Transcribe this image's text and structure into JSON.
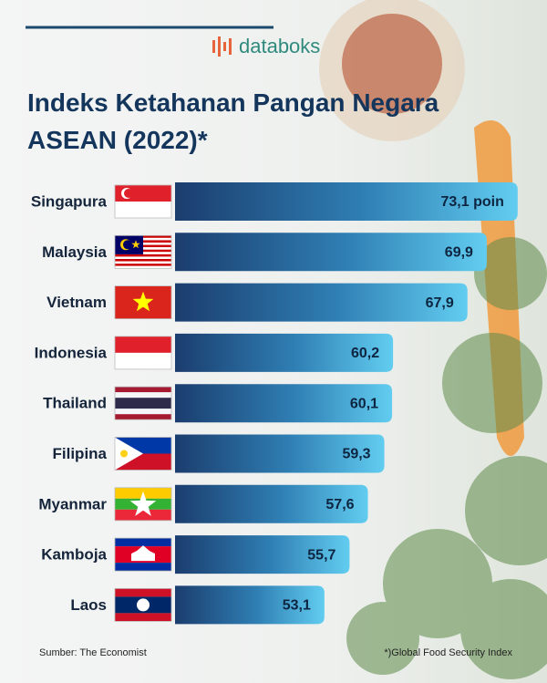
{
  "brand": "databoks",
  "chart_data": {
    "type": "bar",
    "orientation": "horizontal",
    "title": "Indeks Ketahanan Pangan Negara ASEAN (2022)*",
    "categories": [
      "Singapura",
      "Malaysia",
      "Vietnam",
      "Indonesia",
      "Thailand",
      "Filipina",
      "Myanmar",
      "Kamboja",
      "Laos"
    ],
    "values": [
      73.1,
      69.9,
      67.9,
      60.2,
      60.1,
      59.3,
      57.6,
      55.7,
      53.1
    ],
    "value_labels": [
      "73,1 poin",
      "69,9",
      "67,9",
      "60,2",
      "60,1",
      "59,3",
      "57,6",
      "55,7",
      "53,1"
    ],
    "color": "#1b3d6e"
  },
  "source": "Sumber: The Economist",
  "note": "*)Global Food Security Index"
}
